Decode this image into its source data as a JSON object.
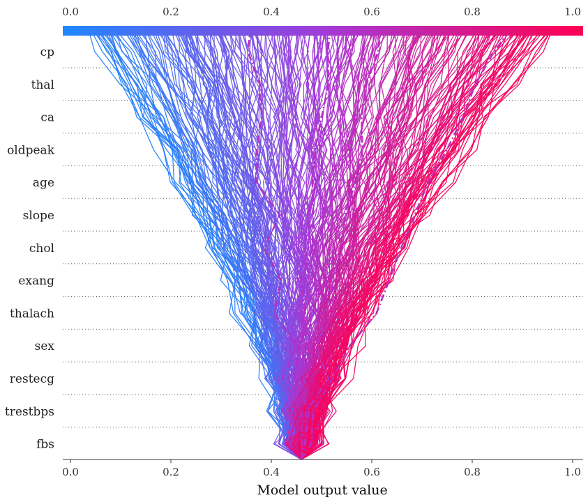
{
  "chart_data": {
    "type": "decision-plot",
    "title": "",
    "xlabel": "Model output value",
    "xlim": [
      0.0,
      1.0
    ],
    "base_value": 0.46,
    "x_ticks": [
      "0.0",
      "0.2",
      "0.4",
      "0.6",
      "0.8",
      "1.0"
    ],
    "x_tick_values": [
      0.0,
      0.2,
      0.4,
      0.6,
      0.8,
      1.0
    ],
    "features": [
      "cp",
      "thal",
      "ca",
      "oldpeak",
      "age",
      "slope",
      "chol",
      "exang",
      "thalach",
      "sex",
      "restecg",
      "trestbps",
      "fbs"
    ],
    "colorbar": {
      "from": "#1e88ff",
      "mid": "#a23ad8",
      "to": "#ff0052"
    },
    "grid": "dotted-horizontal",
    "series_count": 300,
    "highlight_count": 4
  }
}
